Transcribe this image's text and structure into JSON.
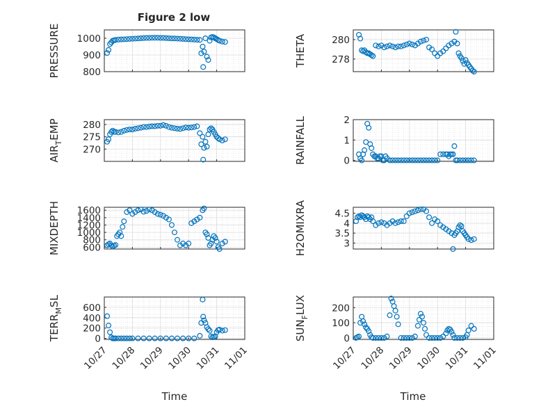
{
  "figure": {
    "title": "Figure 2 low",
    "xlabel_left": "Time",
    "xlabel_right": "Time",
    "x_ticks": [
      "10/27",
      "10/28",
      "10/29",
      "10/30",
      "10/31",
      "11/01"
    ],
    "marker_color": "#0072BD"
  },
  "chart_data": [
    {
      "type": "scatter",
      "ylabel_main": "PRESSURE",
      "ylabel_sub": "",
      "xlim": [
        0,
        5
      ],
      "ylim": [
        800,
        1050
      ],
      "yticks": [
        800,
        900,
        1000
      ],
      "x": [
        0.1,
        0.15,
        0.2,
        0.25,
        0.3,
        0.35,
        0.4,
        0.5,
        0.6,
        0.7,
        0.8,
        0.9,
        1.0,
        1.1,
        1.2,
        1.3,
        1.4,
        1.5,
        1.6,
        1.7,
        1.8,
        1.9,
        2.0,
        2.1,
        2.2,
        2.3,
        2.4,
        2.5,
        2.6,
        2.7,
        2.8,
        2.9,
        3.0,
        3.1,
        3.2,
        3.3,
        3.4,
        3.45,
        3.5,
        3.52,
        3.55,
        3.6,
        3.65,
        3.7,
        3.75,
        3.8,
        3.85,
        3.9,
        3.95,
        4.0,
        4.05,
        4.1,
        4.2,
        4.3
      ],
      "y": [
        912,
        930,
        965,
        975,
        985,
        988,
        990,
        992,
        993,
        994,
        995,
        996,
        997,
        998,
        999,
        1000,
        1001,
        1002,
        1002,
        1003,
        1003,
        1003,
        1002,
        1002,
        1001,
        1000,
        999,
        999,
        998,
        997,
        996,
        995,
        994,
        993,
        992,
        991,
        990,
        910,
        950,
        828,
        920,
        1000,
        890,
        870,
        985,
        1005,
        1008,
        1005,
        1000,
        995,
        990,
        985,
        980,
        978
      ]
    },
    {
      "type": "scatter",
      "ylabel_main": "THETA",
      "ylabel_sub": "",
      "xlim": [
        0,
        5
      ],
      "ylim": [
        276.7,
        281
      ],
      "yticks": [
        278,
        280
      ],
      "x": [
        0.2,
        0.25,
        0.3,
        0.35,
        0.4,
        0.45,
        0.5,
        0.55,
        0.6,
        0.65,
        0.7,
        0.8,
        0.9,
        1.0,
        1.1,
        1.2,
        1.3,
        1.4,
        1.5,
        1.6,
        1.7,
        1.8,
        1.9,
        2.0,
        2.1,
        2.2,
        2.3,
        2.4,
        2.5,
        2.6,
        2.7,
        2.8,
        2.9,
        3.0,
        3.1,
        3.2,
        3.3,
        3.4,
        3.5,
        3.6,
        3.65,
        3.7,
        3.75,
        3.8,
        3.85,
        3.9,
        3.95,
        4.0,
        4.05,
        4.1,
        4.15,
        4.2,
        4.25,
        4.3
      ],
      "y": [
        280.5,
        280.1,
        278.9,
        278.8,
        278.9,
        278.7,
        278.6,
        278.6,
        278.5,
        278.4,
        278.3,
        279.4,
        279.3,
        279.4,
        279.2,
        279.3,
        279.4,
        279.3,
        279.2,
        279.3,
        279.3,
        279.4,
        279.5,
        279.6,
        279.5,
        279.4,
        279.6,
        279.8,
        279.9,
        280.0,
        279.2,
        279.0,
        278.6,
        278.3,
        278.6,
        278.8,
        279.1,
        279.4,
        279.6,
        279.8,
        280.8,
        279.6,
        278.6,
        278.3,
        278.1,
        277.8,
        277.5,
        277.9,
        277.6,
        277.4,
        277.2,
        277.0,
        276.8,
        276.7
      ]
    },
    {
      "type": "scatter",
      "ylabel_main": "AIR",
      "ylabel_sub": "T",
      "ylabel_tail": "EMP",
      "xlim": [
        0,
        5
      ],
      "ylim": [
        265,
        282
      ],
      "yticks": [
        270,
        275,
        280
      ],
      "x": [
        0.1,
        0.15,
        0.2,
        0.25,
        0.3,
        0.35,
        0.4,
        0.5,
        0.6,
        0.7,
        0.8,
        0.9,
        1.0,
        1.1,
        1.2,
        1.3,
        1.4,
        1.5,
        1.6,
        1.7,
        1.8,
        1.9,
        2.0,
        2.1,
        2.2,
        2.3,
        2.4,
        2.5,
        2.6,
        2.7,
        2.8,
        2.9,
        3.0,
        3.1,
        3.2,
        3.3,
        3.4,
        3.45,
        3.5,
        3.52,
        3.55,
        3.6,
        3.65,
        3.7,
        3.75,
        3.8,
        3.85,
        3.9,
        3.95,
        4.0,
        4.05,
        4.1,
        4.2,
        4.3
      ],
      "y": [
        273,
        274,
        276,
        277,
        277.5,
        277,
        277,
        276.8,
        277,
        277.5,
        277.8,
        278,
        278,
        278.3,
        278.5,
        278.7,
        279,
        279,
        279.2,
        279.3,
        279.3,
        279.5,
        279.5,
        279.8,
        279.5,
        279,
        278.7,
        278.5,
        278.3,
        278.2,
        278.5,
        278.8,
        278.7,
        278.8,
        279,
        279.3,
        276.5,
        272,
        275,
        265.7,
        270.5,
        273,
        271,
        276,
        278,
        278.5,
        278,
        277,
        276,
        275,
        274.5,
        274,
        273.5,
        274
      ]
    },
    {
      "type": "scatter",
      "ylabel_main": "RAINFALL",
      "ylabel_sub": "",
      "xlim": [
        0,
        5
      ],
      "ylim": [
        -0.05,
        2
      ],
      "yticks": [
        0,
        1,
        2
      ],
      "x": [
        0.2,
        0.25,
        0.3,
        0.35,
        0.4,
        0.45,
        0.5,
        0.55,
        0.6,
        0.65,
        0.7,
        0.75,
        0.8,
        0.85,
        0.9,
        0.95,
        1.0,
        1.05,
        1.1,
        1.15,
        1.2,
        1.3,
        1.4,
        1.5,
        1.6,
        1.7,
        1.8,
        1.9,
        2.0,
        2.1,
        2.2,
        2.3,
        2.4,
        2.5,
        2.6,
        2.7,
        2.8,
        2.9,
        3.0,
        3.1,
        3.2,
        3.3,
        3.35,
        3.4,
        3.45,
        3.5,
        3.55,
        3.6,
        3.65,
        3.7,
        3.8,
        3.9,
        4.0,
        4.1,
        4.2,
        4.3
      ],
      "y": [
        0.3,
        0.1,
        0.0,
        0.3,
        0.5,
        0.9,
        1.8,
        1.6,
        0.8,
        0.6,
        0.3,
        0.2,
        0.2,
        0.1,
        0.1,
        0.2,
        0.2,
        0.0,
        0.0,
        0.2,
        0.1,
        0,
        0,
        0,
        0,
        0,
        0,
        0,
        0,
        0,
        0,
        0,
        0,
        0,
        0,
        0,
        0,
        0,
        0,
        0.3,
        0.3,
        0.3,
        0.3,
        0.2,
        0.3,
        0.3,
        0.3,
        0.7,
        0.0,
        0,
        0,
        0,
        0,
        0,
        0,
        0
      ]
    },
    {
      "type": "scatter",
      "ylabel_main": "MIXDEPTH",
      "ylabel_sub": "",
      "xlim": [
        0,
        5
      ],
      "ylim": [
        550,
        1680
      ],
      "yticks": [
        600,
        800,
        1000,
        1200,
        1400,
        1600
      ],
      "x": [
        0.1,
        0.15,
        0.2,
        0.25,
        0.3,
        0.35,
        0.4,
        0.45,
        0.5,
        0.55,
        0.6,
        0.65,
        0.7,
        0.8,
        0.9,
        1.0,
        1.1,
        1.2,
        1.3,
        1.4,
        1.5,
        1.6,
        1.7,
        1.8,
        1.9,
        2.0,
        2.1,
        2.2,
        2.3,
        2.4,
        2.5,
        2.6,
        2.7,
        2.8,
        2.9,
        3.0,
        3.1,
        3.2,
        3.3,
        3.4,
        3.5,
        3.55,
        3.6,
        3.65,
        3.7,
        3.75,
        3.8,
        3.85,
        3.9,
        3.95,
        4.0,
        4.05,
        4.1,
        4.2,
        4.3
      ],
      "y": [
        650,
        680,
        700,
        650,
        620,
        640,
        660,
        900,
        950,
        1000,
        900,
        1150,
        1300,
        1550,
        1600,
        1500,
        1550,
        1600,
        1620,
        1560,
        1580,
        1620,
        1600,
        1550,
        1500,
        1480,
        1450,
        1400,
        1350,
        1200,
        1000,
        800,
        650,
        700,
        650,
        700,
        1250,
        1300,
        1350,
        1400,
        1600,
        1650,
        1000,
        950,
        850,
        650,
        700,
        800,
        900,
        850,
        750,
        600,
        550,
        700,
        750
      ]
    },
    {
      "type": "scatter",
      "ylabel_main": "H2OMIXRA",
      "ylabel_sub": "",
      "xlim": [
        0,
        5
      ],
      "ylim": [
        2.7,
        4.8
      ],
      "yticks": [
        3,
        3.5,
        4,
        4.5
      ],
      "x": [
        0.1,
        0.15,
        0.2,
        0.25,
        0.3,
        0.35,
        0.4,
        0.45,
        0.5,
        0.55,
        0.6,
        0.65,
        0.7,
        0.8,
        0.9,
        1.0,
        1.1,
        1.2,
        1.3,
        1.4,
        1.5,
        1.6,
        1.7,
        1.8,
        1.9,
        2.0,
        2.1,
        2.2,
        2.3,
        2.4,
        2.5,
        2.6,
        2.7,
        2.8,
        2.9,
        3.0,
        3.1,
        3.2,
        3.3,
        3.4,
        3.5,
        3.55,
        3.6,
        3.65,
        3.7,
        3.75,
        3.8,
        3.85,
        3.9,
        3.95,
        4.0,
        4.05,
        4.1,
        4.2,
        4.3
      ],
      "y": [
        4.1,
        4.3,
        4.35,
        4.3,
        4.4,
        4.35,
        4.3,
        4.2,
        4.35,
        4.3,
        4.2,
        4.3,
        4.1,
        3.9,
        4.0,
        4.05,
        4.0,
        3.9,
        4.0,
        4.1,
        4.0,
        4.05,
        4.1,
        4.1,
        4.35,
        4.5,
        4.55,
        4.6,
        4.65,
        4.7,
        4.7,
        4.6,
        4.3,
        4.0,
        4.2,
        4.1,
        3.9,
        3.8,
        3.7,
        3.6,
        3.5,
        2.7,
        3.4,
        3.5,
        3.6,
        3.8,
        3.9,
        3.85,
        3.6,
        3.5,
        3.4,
        3.3,
        3.2,
        3.15,
        3.2
      ]
    },
    {
      "type": "scatter",
      "ylabel_main": "TERR",
      "ylabel_sub": "M",
      "ylabel_tail": "SL",
      "xlim": [
        0,
        5
      ],
      "ylim": [
        -20,
        800
      ],
      "yticks": [
        0,
        200,
        400,
        600
      ],
      "x": [
        0.1,
        0.15,
        0.2,
        0.25,
        0.3,
        0.35,
        0.4,
        0.5,
        0.6,
        0.7,
        0.8,
        0.9,
        1.0,
        1.2,
        1.4,
        1.6,
        1.8,
        2.0,
        2.2,
        2.4,
        2.6,
        2.8,
        3.0,
        3.2,
        3.4,
        3.45,
        3.5,
        3.52,
        3.55,
        3.6,
        3.65,
        3.7,
        3.75,
        3.8,
        3.85,
        3.9,
        3.95,
        4.0,
        4.05,
        4.1,
        4.2,
        4.3
      ],
      "y": [
        430,
        250,
        120,
        20,
        0,
        0,
        0,
        0,
        0,
        0,
        0,
        0,
        0,
        0,
        0,
        0,
        0,
        0,
        0,
        0,
        0,
        0,
        0,
        0,
        50,
        300,
        750,
        420,
        350,
        300,
        220,
        180,
        150,
        40,
        20,
        30,
        40,
        120,
        160,
        170,
        150,
        160
      ]
    },
    {
      "type": "scatter",
      "ylabel_main": "SUN",
      "ylabel_sub": "F",
      "ylabel_tail": "LUX",
      "xlim": [
        0,
        5
      ],
      "ylim": [
        -10,
        270
      ],
      "yticks": [
        0,
        100,
        200
      ],
      "x": [
        0.1,
        0.15,
        0.2,
        0.25,
        0.3,
        0.35,
        0.4,
        0.45,
        0.5,
        0.55,
        0.6,
        0.65,
        0.7,
        0.8,
        0.9,
        1.0,
        1.1,
        1.2,
        1.3,
        1.35,
        1.4,
        1.45,
        1.5,
        1.55,
        1.6,
        1.7,
        1.8,
        1.9,
        2.0,
        2.1,
        2.2,
        2.3,
        2.35,
        2.4,
        2.45,
        2.5,
        2.55,
        2.6,
        2.7,
        2.8,
        2.9,
        3.0,
        3.1,
        3.2,
        3.3,
        3.35,
        3.4,
        3.45,
        3.5,
        3.55,
        3.6,
        3.7,
        3.8,
        3.9,
        4.0,
        4.05,
        4.1,
        4.2,
        4.3
      ],
      "y": [
        0,
        5,
        10,
        100,
        140,
        110,
        90,
        70,
        60,
        45,
        20,
        5,
        0,
        0,
        0,
        0,
        0,
        10,
        150,
        260,
        240,
        210,
        180,
        140,
        90,
        0,
        0,
        0,
        0,
        0,
        10,
        80,
        120,
        160,
        140,
        100,
        60,
        20,
        0,
        0,
        0,
        0,
        0,
        10,
        30,
        50,
        60,
        55,
        40,
        20,
        0,
        0,
        0,
        0,
        5,
        20,
        50,
        80,
        60
      ]
    }
  ]
}
